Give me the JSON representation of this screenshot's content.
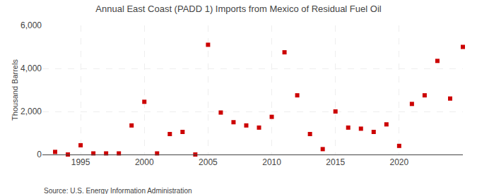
{
  "chart_data": {
    "type": "scatter",
    "title": "Annual East Coast (PADD 1) Imports from Mexico of Residual Fuel Oil",
    "ylabel": "Thousand Barrels",
    "annotations": [
      "Source: U.S. Energy Information Administration"
    ],
    "x": [
      1993,
      1994,
      1995,
      1996,
      1997,
      1998,
      1999,
      2000,
      2001,
      2002,
      2003,
      2004,
      2005,
      2006,
      2007,
      2008,
      2009,
      2010,
      2011,
      2012,
      2013,
      2014,
      2015,
      2016,
      2017,
      2018,
      2019,
      2020,
      2021,
      2022,
      2023,
      2024,
      2025
    ],
    "values": [
      120,
      0,
      430,
      50,
      50,
      50,
      1350,
      2450,
      50,
      950,
      1050,
      0,
      5100,
      1950,
      1500,
      1350,
      1250,
      1750,
      4750,
      2750,
      950,
      250,
      2000,
      1250,
      1200,
      1050,
      1400,
      400,
      2350,
      2750,
      4350,
      2600,
      5000
    ],
    "color": "#cc0000",
    "marker": "square",
    "xlim": [
      1992,
      2025
    ],
    "xticks": [
      1995,
      2000,
      2005,
      2010,
      2015,
      2020
    ],
    "ylim": [
      0,
      6000
    ],
    "yticks": [
      0,
      {
        "value": 2000,
        "label": "2,000"
      },
      {
        "value": 4000,
        "label": "4,000"
      },
      {
        "value": 6000,
        "label": "6,000"
      }
    ],
    "grid": true
  }
}
